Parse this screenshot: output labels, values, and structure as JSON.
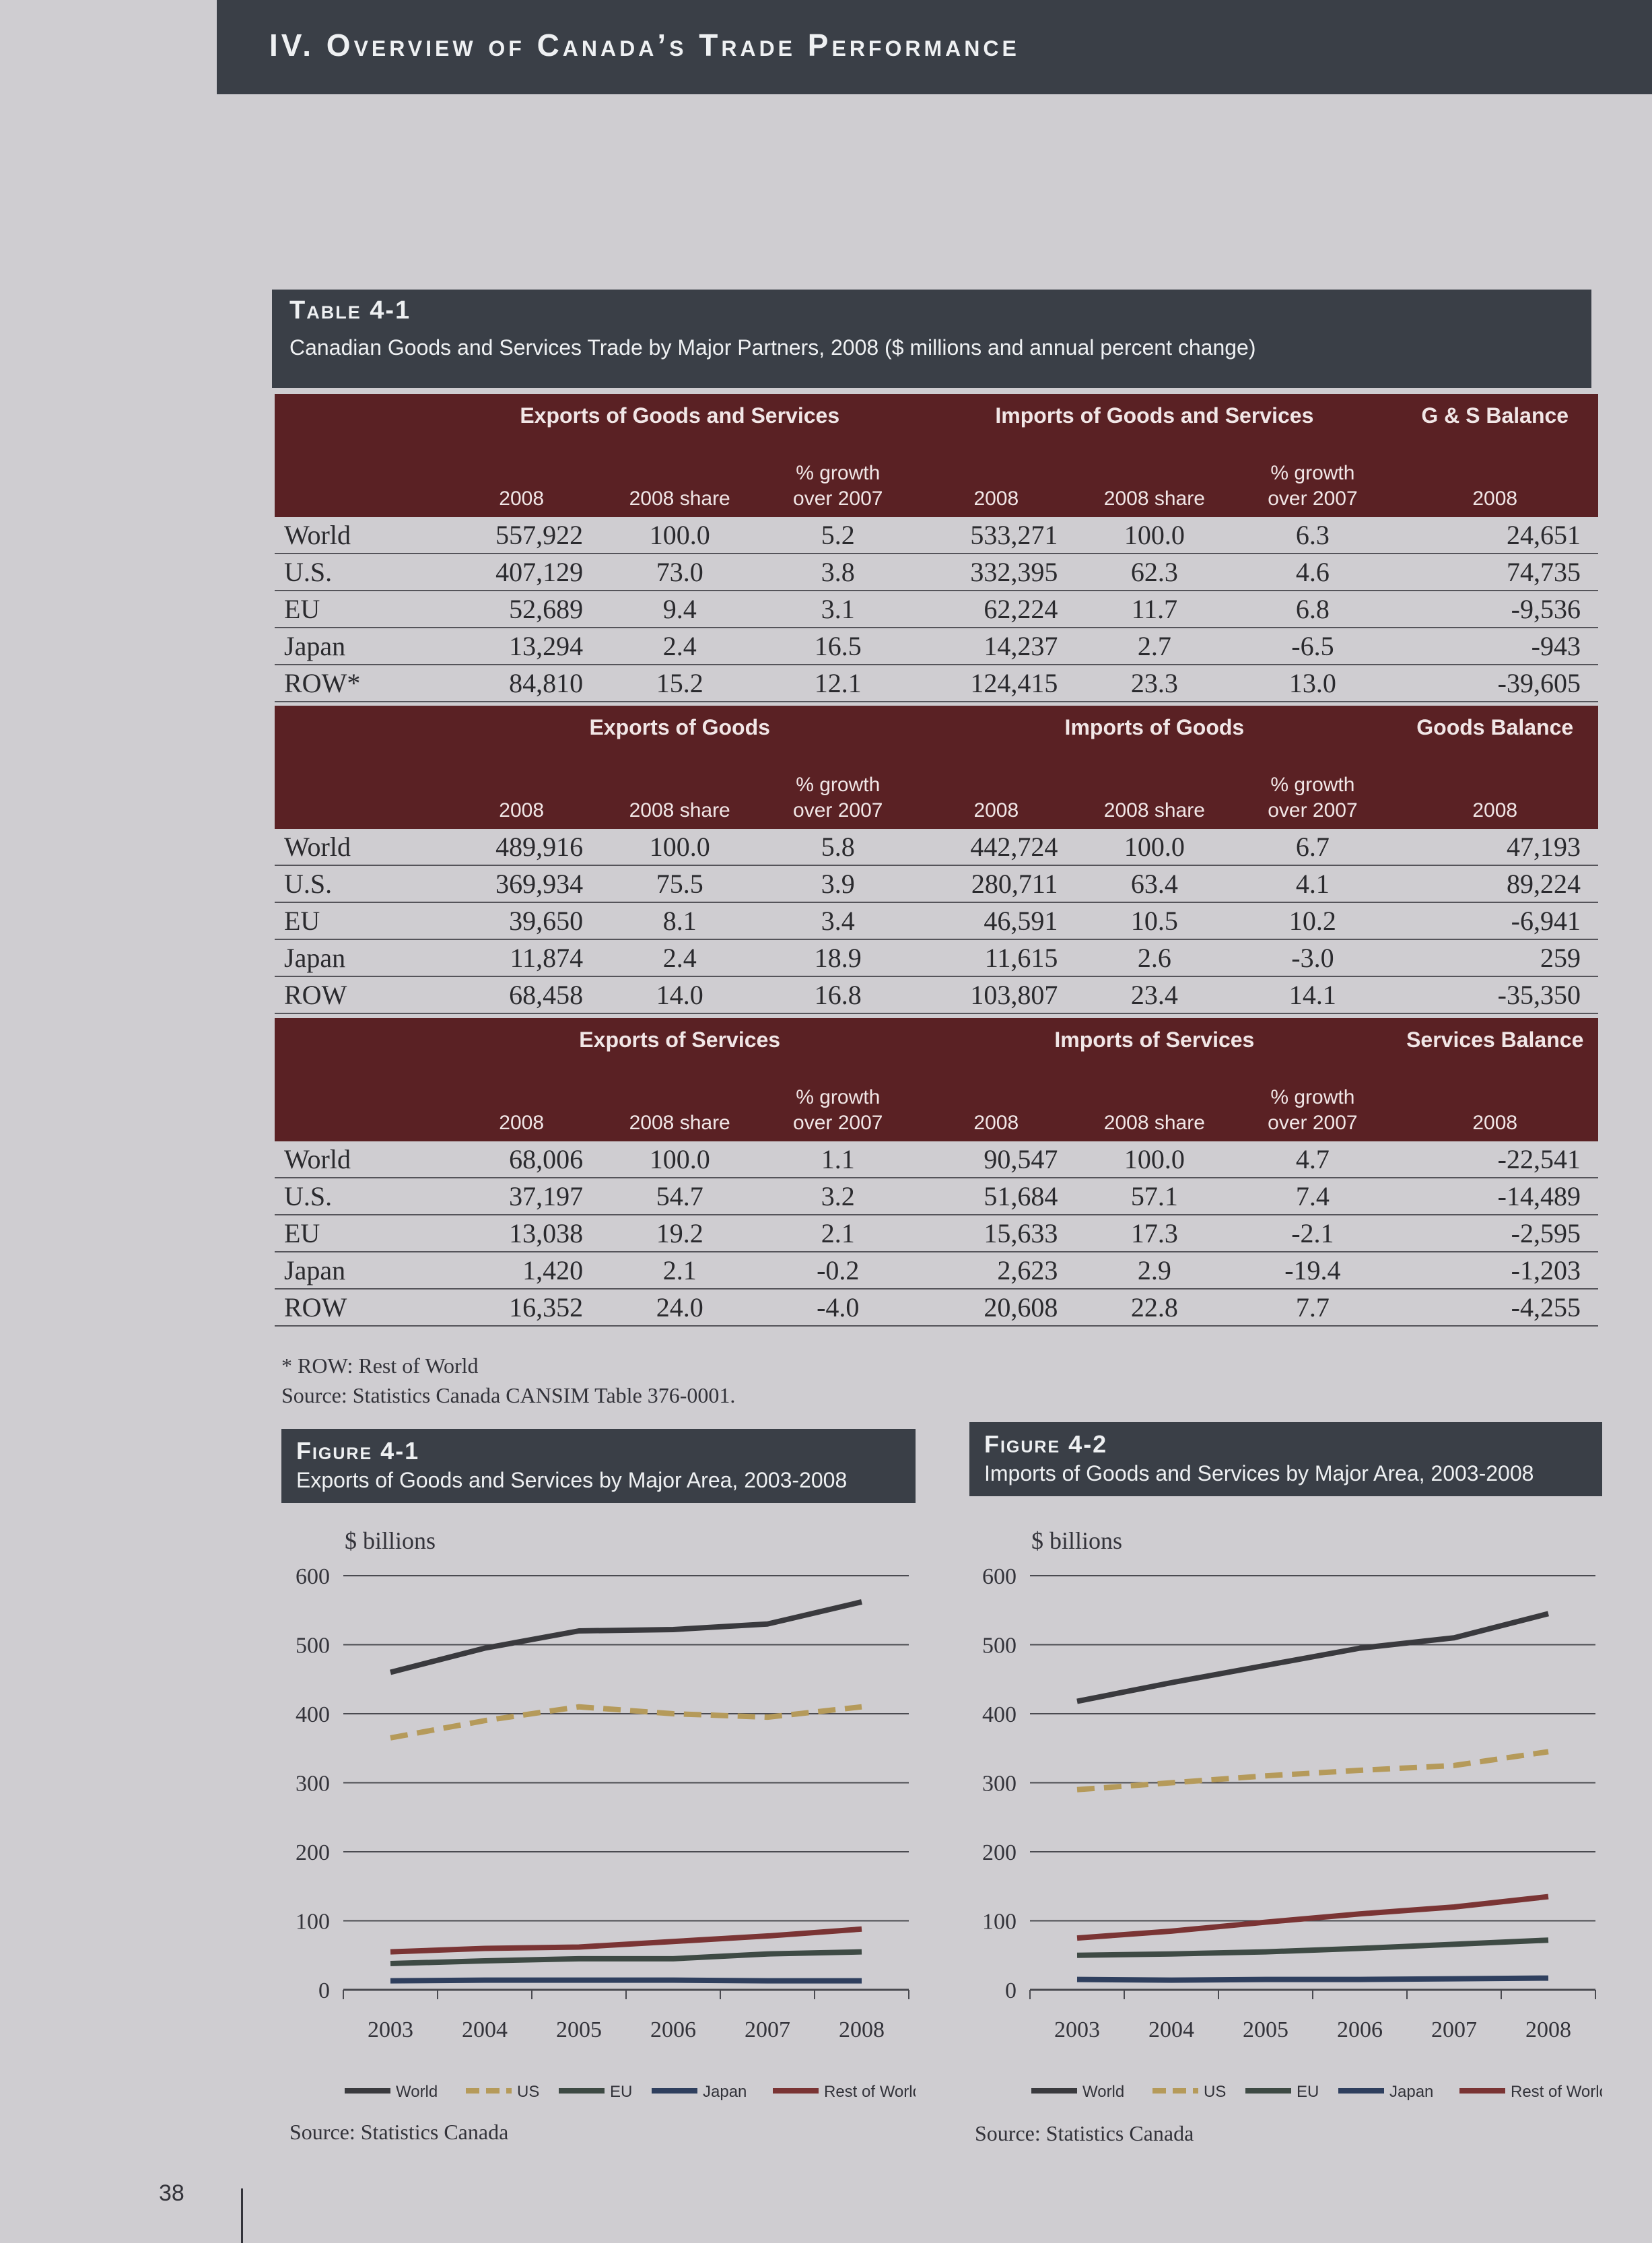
{
  "header": {
    "title": "IV. Overview of Canada’s Trade Performance"
  },
  "table": {
    "label": "Table 4-1",
    "caption": "Canadian Goods and Services Trade by Major Partners, 2008 ($ millions and annual percent change)",
    "col_year": "2008",
    "col_share": "2008 share",
    "col_growth_1": "% growth",
    "col_growth_2": "over 2007",
    "sections": [
      {
        "exports_title": "Exports of Goods and Services",
        "imports_title": "Imports of Goods and Services",
        "balance_title": "G & S Balance",
        "rows": [
          [
            "World",
            "557,922",
            "100.0",
            "5.2",
            "533,271",
            "100.0",
            "6.3",
            "24,651"
          ],
          [
            "U.S.",
            "407,129",
            "73.0",
            "3.8",
            "332,395",
            "62.3",
            "4.6",
            "74,735"
          ],
          [
            "EU",
            "52,689",
            "9.4",
            "3.1",
            "62,224",
            "11.7",
            "6.8",
            "-9,536"
          ],
          [
            "Japan",
            "13,294",
            "2.4",
            "16.5",
            "14,237",
            "2.7",
            "-6.5",
            "-943"
          ],
          [
            "ROW*",
            "84,810",
            "15.2",
            "12.1",
            "124,415",
            "23.3",
            "13.0",
            "-39,605"
          ]
        ]
      },
      {
        "exports_title": "Exports of Goods",
        "imports_title": "Imports of Goods",
        "balance_title": "Goods Balance",
        "rows": [
          [
            "World",
            "489,916",
            "100.0",
            "5.8",
            "442,724",
            "100.0",
            "6.7",
            "47,193"
          ],
          [
            "U.S.",
            "369,934",
            "75.5",
            "3.9",
            "280,711",
            "63.4",
            "4.1",
            "89,224"
          ],
          [
            "EU",
            "39,650",
            "8.1",
            "3.4",
            "46,591",
            "10.5",
            "10.2",
            "-6,941"
          ],
          [
            "Japan",
            "11,874",
            "2.4",
            "18.9",
            "11,615",
            "2.6",
            "-3.0",
            "259"
          ],
          [
            "ROW",
            "68,458",
            "14.0",
            "16.8",
            "103,807",
            "23.4",
            "14.1",
            "-35,350"
          ]
        ]
      },
      {
        "exports_title": "Exports of Services",
        "imports_title": "Imports of Services",
        "balance_title": "Services Balance",
        "rows": [
          [
            "World",
            "68,006",
            "100.0",
            "1.1",
            "90,547",
            "100.0",
            "4.7",
            "-22,541"
          ],
          [
            "U.S.",
            "37,197",
            "54.7",
            "3.2",
            "51,684",
            "57.1",
            "7.4",
            "-14,489"
          ],
          [
            "EU",
            "13,038",
            "19.2",
            "2.1",
            "15,633",
            "17.3",
            "-2.1",
            "-2,595"
          ],
          [
            "Japan",
            "1,420",
            "2.1",
            "-0.2",
            "2,623",
            "2.9",
            "-19.4",
            "-1,203"
          ],
          [
            "ROW",
            "16,352",
            "24.0",
            "-4.0",
            "20,608",
            "22.8",
            "7.7",
            "-4,255"
          ]
        ]
      }
    ],
    "footnote": "* ROW: Rest of World",
    "source": "Source: Statistics Canada CANSIM Table 376-0001."
  },
  "figures": [
    {
      "label": "Figure 4-1",
      "title": "Exports of Goods and Services by Major Area, 2003-2008",
      "source": "Source: Statistics Canada"
    },
    {
      "label": "Figure 4-2",
      "title": "Imports of Goods and Services by Major Area, 2003-2008",
      "source": "Source: Statistics Canada"
    }
  ],
  "page_number": "38",
  "colors": {
    "world": "#3a3a3e",
    "us": "#b59a5a",
    "eu": "#3e4a44",
    "japan": "#2f3f5e",
    "row": "#7a3434"
  },
  "chart_data": [
    {
      "type": "line",
      "ylabel": "$ billions",
      "ylim": [
        0,
        600
      ],
      "yticks": [
        0,
        100,
        200,
        300,
        400,
        500,
        600
      ],
      "x": [
        "2003",
        "2004",
        "2005",
        "2006",
        "2007",
        "2008"
      ],
      "grid": true,
      "legend": "bottom",
      "series": [
        {
          "name": "World",
          "values": [
            460,
            495,
            520,
            522,
            530,
            562
          ],
          "style": "solid",
          "color": "#3a3a3e"
        },
        {
          "name": "US",
          "values": [
            365,
            390,
            410,
            400,
            395,
            410
          ],
          "style": "dashed",
          "color": "#b59a5a"
        },
        {
          "name": "EU",
          "values": [
            38,
            42,
            45,
            45,
            52,
            55
          ],
          "style": "solid",
          "color": "#3e4a44"
        },
        {
          "name": "Japan",
          "values": [
            13,
            14,
            14,
            14,
            13,
            13
          ],
          "style": "solid",
          "color": "#2f3f5e"
        },
        {
          "name": "Rest of World",
          "values": [
            55,
            60,
            62,
            70,
            78,
            88
          ],
          "style": "solid",
          "color": "#7a3434"
        }
      ]
    },
    {
      "type": "line",
      "ylabel": "$ billions",
      "ylim": [
        0,
        600
      ],
      "yticks": [
        0,
        100,
        200,
        300,
        400,
        500,
        600
      ],
      "x": [
        "2003",
        "2004",
        "2005",
        "2006",
        "2007",
        "2008"
      ],
      "grid": true,
      "legend": "bottom",
      "series": [
        {
          "name": "World",
          "values": [
            418,
            445,
            470,
            495,
            510,
            545
          ],
          "style": "solid",
          "color": "#3a3a3e"
        },
        {
          "name": "US",
          "values": [
            290,
            300,
            310,
            318,
            325,
            345
          ],
          "style": "dashed",
          "color": "#b59a5a"
        },
        {
          "name": "EU",
          "values": [
            50,
            52,
            55,
            60,
            66,
            72
          ],
          "style": "solid",
          "color": "#3e4a44"
        },
        {
          "name": "Japan",
          "values": [
            15,
            14,
            15,
            15,
            16,
            17
          ],
          "style": "solid",
          "color": "#2f3f5e"
        },
        {
          "name": "Rest of World",
          "values": [
            75,
            85,
            98,
            110,
            120,
            135
          ],
          "style": "solid",
          "color": "#7a3434"
        }
      ]
    }
  ]
}
